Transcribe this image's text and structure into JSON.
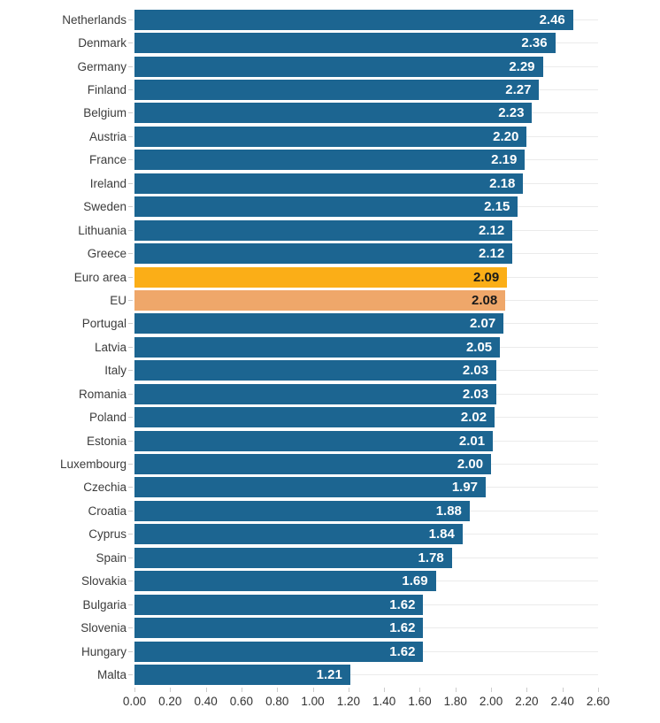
{
  "chart_data": {
    "type": "bar",
    "orientation": "horizontal",
    "title": "",
    "xlabel": "",
    "ylabel": "",
    "xlim": [
      0,
      2.6
    ],
    "x_tick_step": 0.2,
    "x_tick_labels": [
      "0.00",
      "0.20",
      "0.40",
      "0.60",
      "0.80",
      "1.00",
      "1.20",
      "1.40",
      "1.60",
      "1.80",
      "2.00",
      "2.20",
      "2.40",
      "2.60"
    ],
    "grid": "horizontal line at each row center, behind bars",
    "legend": "none",
    "categories": [
      "Netherlands",
      "Denmark",
      "Germany",
      "Finland",
      "Belgium",
      "Austria",
      "France",
      "Ireland",
      "Sweden",
      "Lithuania",
      "Greece",
      "Euro area",
      "EU",
      "Portugal",
      "Latvia",
      "Italy",
      "Romania",
      "Poland",
      "Estonia",
      "Luxembourg",
      "Czechia",
      "Croatia",
      "Cyprus",
      "Spain",
      "Slovakia",
      "Bulgaria",
      "Slovenia",
      "Hungary",
      "Malta"
    ],
    "values": [
      2.46,
      2.36,
      2.29,
      2.27,
      2.23,
      2.2,
      2.19,
      2.18,
      2.15,
      2.12,
      2.12,
      2.09,
      2.08,
      2.07,
      2.05,
      2.03,
      2.03,
      2.02,
      2.01,
      2.0,
      1.97,
      1.88,
      1.84,
      1.78,
      1.69,
      1.62,
      1.62,
      1.62,
      1.21
    ],
    "value_labels": [
      "2.46",
      "2.36",
      "2.29",
      "2.27",
      "2.23",
      "2.20",
      "2.19",
      "2.18",
      "2.15",
      "2.12",
      "2.12",
      "2.09",
      "2.08",
      "2.07",
      "2.05",
      "2.03",
      "2.03",
      "2.02",
      "2.01",
      "2.00",
      "1.97",
      "1.88",
      "1.84",
      "1.78",
      "1.69",
      "1.62",
      "1.62",
      "1.62",
      "1.21"
    ],
    "highlights": {
      "11": "euro_area",
      "12": "eu"
    }
  },
  "colors": {
    "background": "#FFFFFF",
    "bar_default": "#1C6591",
    "bar_euro_area": "#FBAE17",
    "bar_eu": "#EFA76A",
    "value_text_default": "#FFFFFF",
    "value_text_highlight": "#1A1A1A",
    "category_label": "#3C3C3C",
    "axis_label": "#333333",
    "gridline": "#EBEBEB",
    "tick": "#CCCCCC"
  }
}
